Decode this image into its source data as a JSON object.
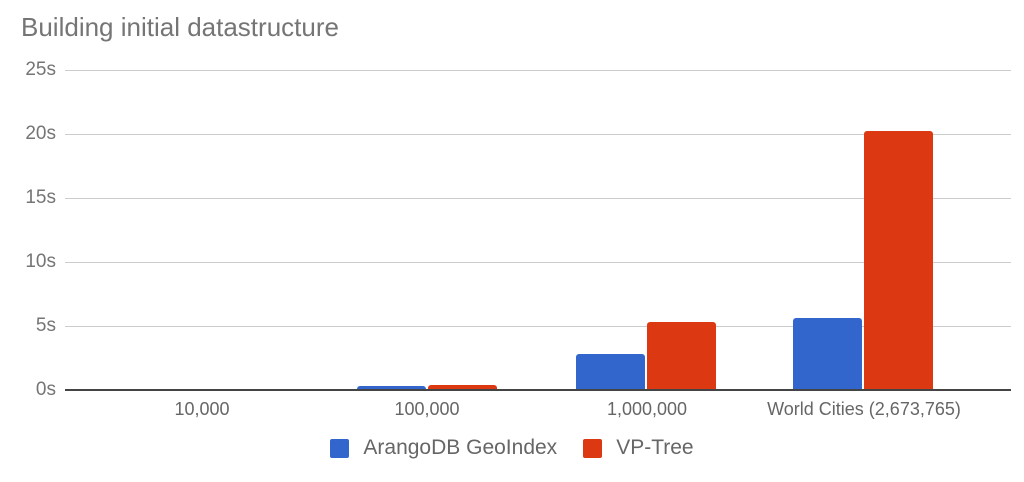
{
  "chart_data": {
    "type": "bar",
    "title": "Building initial datastructure",
    "xlabel": "",
    "ylabel": "",
    "ylim": [
      0,
      25
    ],
    "y_ticks": [
      "0s",
      "5s",
      "10s",
      "15s",
      "20s",
      "25s"
    ],
    "grid": true,
    "legend_position": "bottom",
    "categories": [
      "10,000",
      "100,000",
      "1,000,000",
      "World Cities (2,673,765)"
    ],
    "series": [
      {
        "name": "ArangoDB GeoIndex",
        "color": "#3366cc",
        "values": [
          0.0,
          0.3,
          2.8,
          5.6
        ]
      },
      {
        "name": "VP-Tree",
        "color": "#dc3912",
        "values": [
          0.0,
          0.4,
          5.3,
          20.2
        ]
      }
    ]
  }
}
